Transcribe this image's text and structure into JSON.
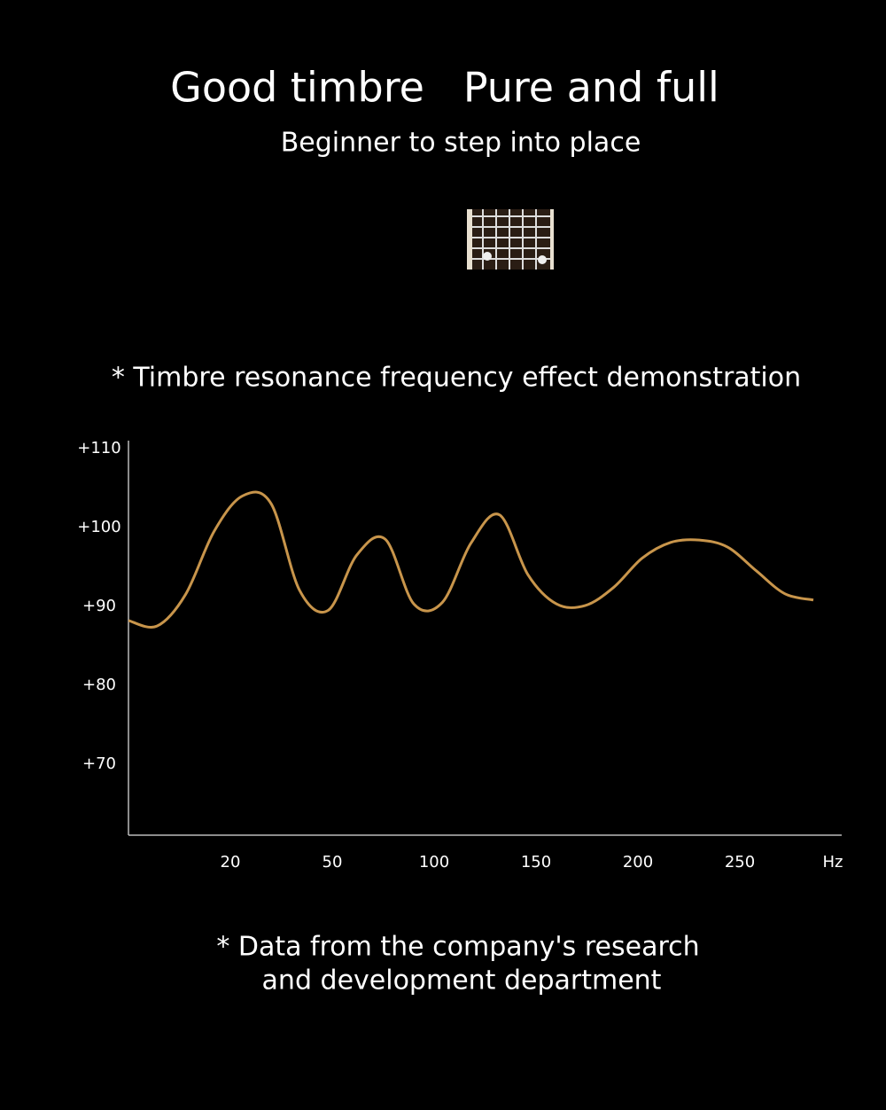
{
  "header": {
    "title": "Good timbre   Pure and full",
    "subtitle": "Beginner to step into place"
  },
  "chart_data": {
    "type": "line",
    "title": "* Timbre resonance frequency effect demonstration",
    "x_label": "Hz",
    "xticks": [
      20,
      50,
      100,
      150,
      200,
      250
    ],
    "ylim": [
      61,
      111
    ],
    "yticks": [
      {
        "value": 110,
        "label": "+110"
      },
      {
        "value": 100,
        "label": "+100"
      },
      {
        "value": 90,
        "label": "+90"
      },
      {
        "value": 80,
        "label": "+80"
      },
      {
        "value": 70,
        "label": "+70"
      }
    ],
    "series": [
      {
        "color": "#c8954b",
        "values": [
          88.2,
          87.5,
          91.5,
          99.5,
          104,
          103,
          92,
          89.5,
          96.5,
          98.5,
          90.3,
          90.5,
          98,
          101.6,
          94,
          90.3,
          90.1,
          92.4,
          96.1,
          98.1,
          98.4,
          97.5,
          94.5,
          91.6,
          90.8
        ]
      }
    ],
    "note": [
      "* Data from the company's research",
      "and development department"
    ]
  }
}
